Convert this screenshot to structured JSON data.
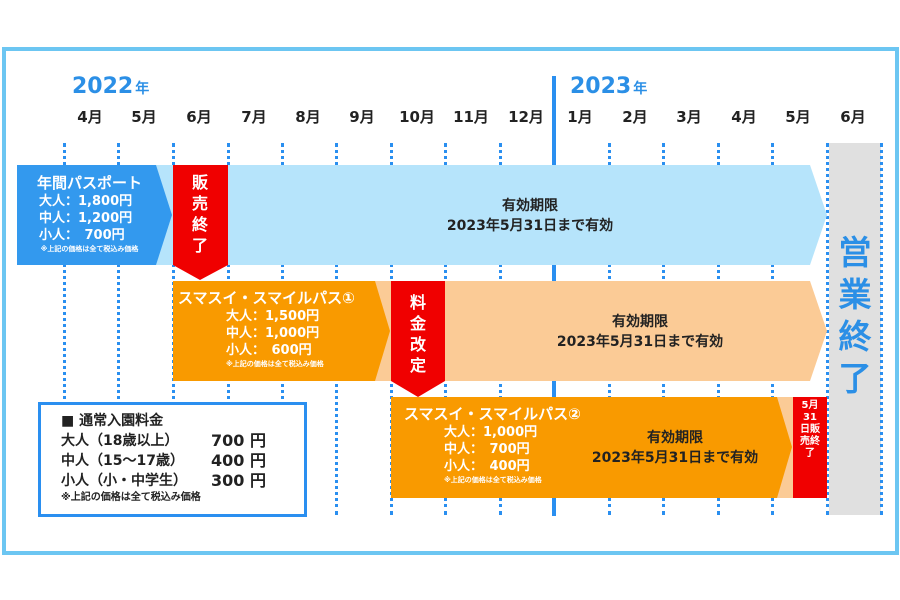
{
  "years": {
    "y2022": "2022",
    "y2023": "2023",
    "suffix": "年"
  },
  "months": [
    "4月",
    "5月",
    "6月",
    "7月",
    "8月",
    "9月",
    "10月",
    "11月",
    "12月",
    "1月",
    "2月",
    "3月",
    "4月",
    "5月",
    "6月"
  ],
  "colors": {
    "frame": "#6cc6f2",
    "accent_blue": "#2b8fe6",
    "annual_pass": "#3399ee",
    "annual_validity": "#b6e4fb",
    "smile_pass": "#f99a00",
    "smile_validity": "#fbcb96",
    "red": "#f00000",
    "closed": "#e0e0e0"
  },
  "annual_pass": {
    "title": "年間パスポート",
    "prices": [
      "大人：1,800円",
      "中人：1,200円",
      "小人：　700円"
    ],
    "note": "※上記の価格は全て税込み価格",
    "event": "販売終了",
    "validity_label": "有効期限",
    "validity_date": "2023年5月31日まで有効"
  },
  "smile_pass_1": {
    "title": "スマスイ・スマイルパス①",
    "prices": [
      "大人：1,500円",
      "中人：1,000円",
      "小人：　600円"
    ],
    "note": "※上記の価格は全て税込み価格",
    "event": "料金改定",
    "validity_label": "有効期限",
    "validity_date": "2023年5月31日まで有効"
  },
  "smile_pass_2": {
    "title": "スマスイ・スマイルパス②",
    "prices": [
      "大人：1,000円",
      "中人：　700円",
      "小人：　400円"
    ],
    "note": "※上記の価格は全て税込み価格",
    "event": "5月31日販売終了",
    "validity_label": "有効期限",
    "validity_date": "2023年5月31日まで有効"
  },
  "closing": "営業終了",
  "regular_admission": {
    "title": "■ 通常入園料金",
    "rows": [
      {
        "label": "大人（18歳以上）",
        "price": "700 円"
      },
      {
        "label": "中人（15～17歳）",
        "price": "400 円"
      },
      {
        "label": "小人（小・中学生）",
        "price": "300 円"
      }
    ],
    "note": "※上記の価格は全て税込み価格"
  }
}
